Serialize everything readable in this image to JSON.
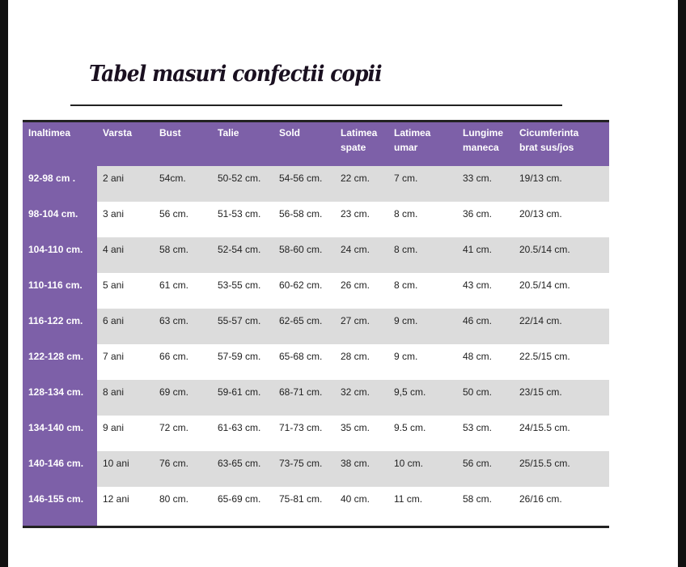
{
  "title": "Tabel masuri confectii copii",
  "colors": {
    "header": "#7d60a8",
    "stripe": "#dcdcdc"
  },
  "columns": [
    "Inaltimea",
    "Varsta",
    "Bust",
    "Talie",
    "Sold",
    "Latimea spate",
    "Latimea umar",
    "Lungime maneca",
    "Cicumferinta brat sus/jos"
  ],
  "rows": [
    [
      "92-98  cm .",
      "2 ani",
      "54cm.",
      "50-52 cm.",
      "54-56 cm.",
      "22 cm.",
      "7 cm.",
      "33 cm.",
      "19/13 cm."
    ],
    [
      "98-104 cm.",
      "3 ani",
      "56 cm.",
      "51-53 cm.",
      "56-58 cm.",
      "23 cm.",
      "8 cm.",
      "36 cm.",
      "20/13 cm."
    ],
    [
      "104-110 cm.",
      "4 ani",
      "58 cm.",
      "52-54 cm.",
      "58-60 cm.",
      "24 cm.",
      "8 cm.",
      "41 cm.",
      "20.5/14 cm."
    ],
    [
      "110-116 cm.",
      "5 ani",
      "61 cm.",
      "53-55 cm.",
      "60-62 cm.",
      "26 cm.",
      "8 cm.",
      "43 cm.",
      "20.5/14 cm."
    ],
    [
      "116-122 cm.",
      "6 ani",
      "63 cm.",
      "55-57 cm.",
      "62-65 cm.",
      "27 cm.",
      "9 cm.",
      "46 cm.",
      "22/14 cm."
    ],
    [
      "122-128 cm.",
      "7 ani",
      "66 cm.",
      "57-59 cm.",
      "65-68 cm.",
      "28 cm.",
      "9 cm.",
      "48 cm.",
      "22.5/15 cm."
    ],
    [
      "128-134 cm.",
      "8 ani",
      "69 cm.",
      "59-61 cm.",
      "68-71 cm.",
      "32 cm.",
      "9,5 cm.",
      "50 cm.",
      "23/15 cm."
    ],
    [
      "134-140 cm.",
      "9 ani",
      "72 cm.",
      "61-63 cm.",
      "71-73 cm.",
      "35 cm.",
      "9.5 cm.",
      "53 cm.",
      "24/15.5 cm."
    ],
    [
      "140-146 cm.",
      "10 ani",
      "76 cm.",
      "63-65 cm.",
      "73-75 cm.",
      "38 cm.",
      "10 cm.",
      "56 cm.",
      "25/15.5 cm."
    ],
    [
      "146-155 cm.",
      "12 ani",
      "80 cm.",
      "65-69 cm.",
      "75-81 cm.",
      "40 cm.",
      "11 cm.",
      "58 cm.",
      "26/16 cm."
    ]
  ]
}
